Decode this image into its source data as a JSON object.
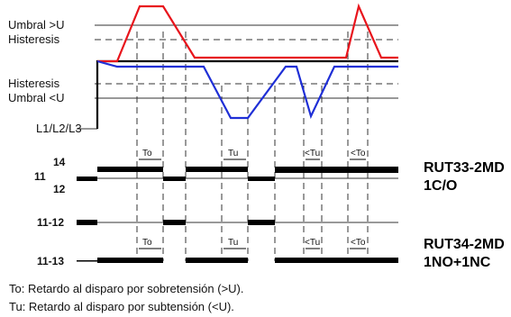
{
  "signals": {
    "umbral_over": "Umbral >U",
    "hysteresis_upper": "Histeresis",
    "hysteresis_lower": "Histeresis",
    "umbral_under": "Umbral <U",
    "supply": "L1/L2/L3"
  },
  "contacts": {
    "c14": "14",
    "c11": "11",
    "c12": "12",
    "c11_12": "11-12",
    "c11_13": "11-13"
  },
  "delay_tags": {
    "to": "To",
    "tu": "Tu",
    "lt_tu": "<Tu",
    "lt_to": "<To"
  },
  "models": {
    "rut33_name": "RUT33-2MD",
    "rut33_type": "1C/O",
    "rut34_name": "RUT34-2MD",
    "rut34_type": "1NO+1NC"
  },
  "legend": {
    "to": "To: Retardo al disparo por sobretensión (>U).",
    "tu": "Tu: Retardo al disparo por subtensión (<U)."
  },
  "colors": {
    "over_voltage": "#e8141c",
    "under_voltage": "#1f2fd6",
    "supply": "#000000"
  }
}
